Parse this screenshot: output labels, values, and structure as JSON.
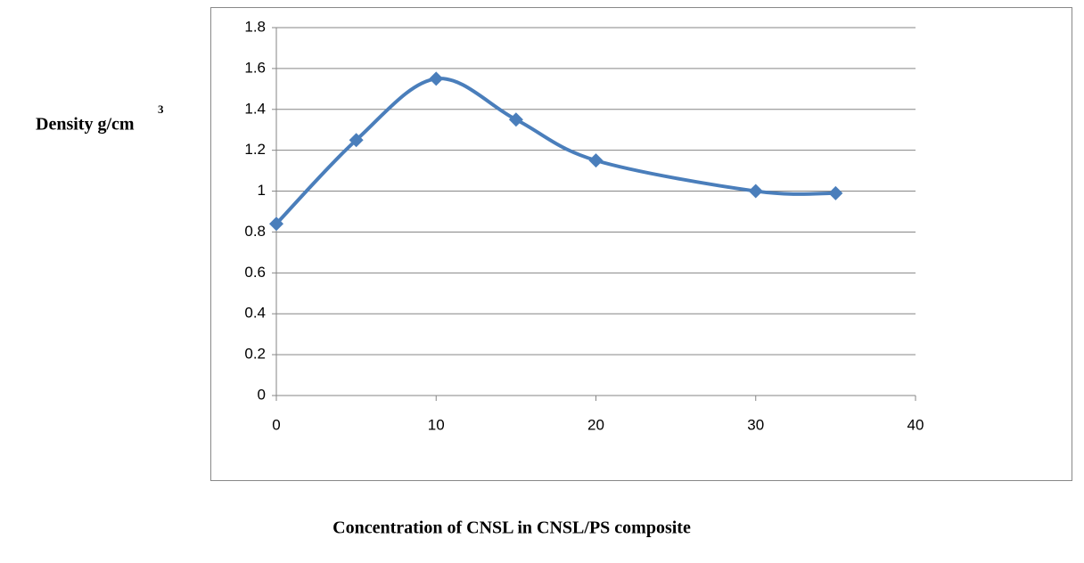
{
  "chart_data": {
    "type": "line",
    "ylabel": "Density g/cm",
    "ylabel_superscript": "3",
    "xlabel": "Concentration of CNSL in CNSL/PS composite",
    "x": [
      0,
      5,
      10,
      15,
      20,
      30,
      35
    ],
    "series": [
      {
        "color": "#4a7ebb",
        "values": [
          0.84,
          1.25,
          1.55,
          1.35,
          1.15,
          1.0,
          0.99
        ]
      }
    ],
    "xlim": [
      0,
      40
    ],
    "xticks": [
      0,
      10,
      20,
      30,
      40
    ],
    "ylim": [
      0,
      1.8
    ],
    "yticks": [
      0,
      0.2,
      0.4,
      0.6,
      0.8,
      1,
      1.2,
      1.4,
      1.6,
      1.8
    ],
    "grid": true,
    "smooth": true
  }
}
